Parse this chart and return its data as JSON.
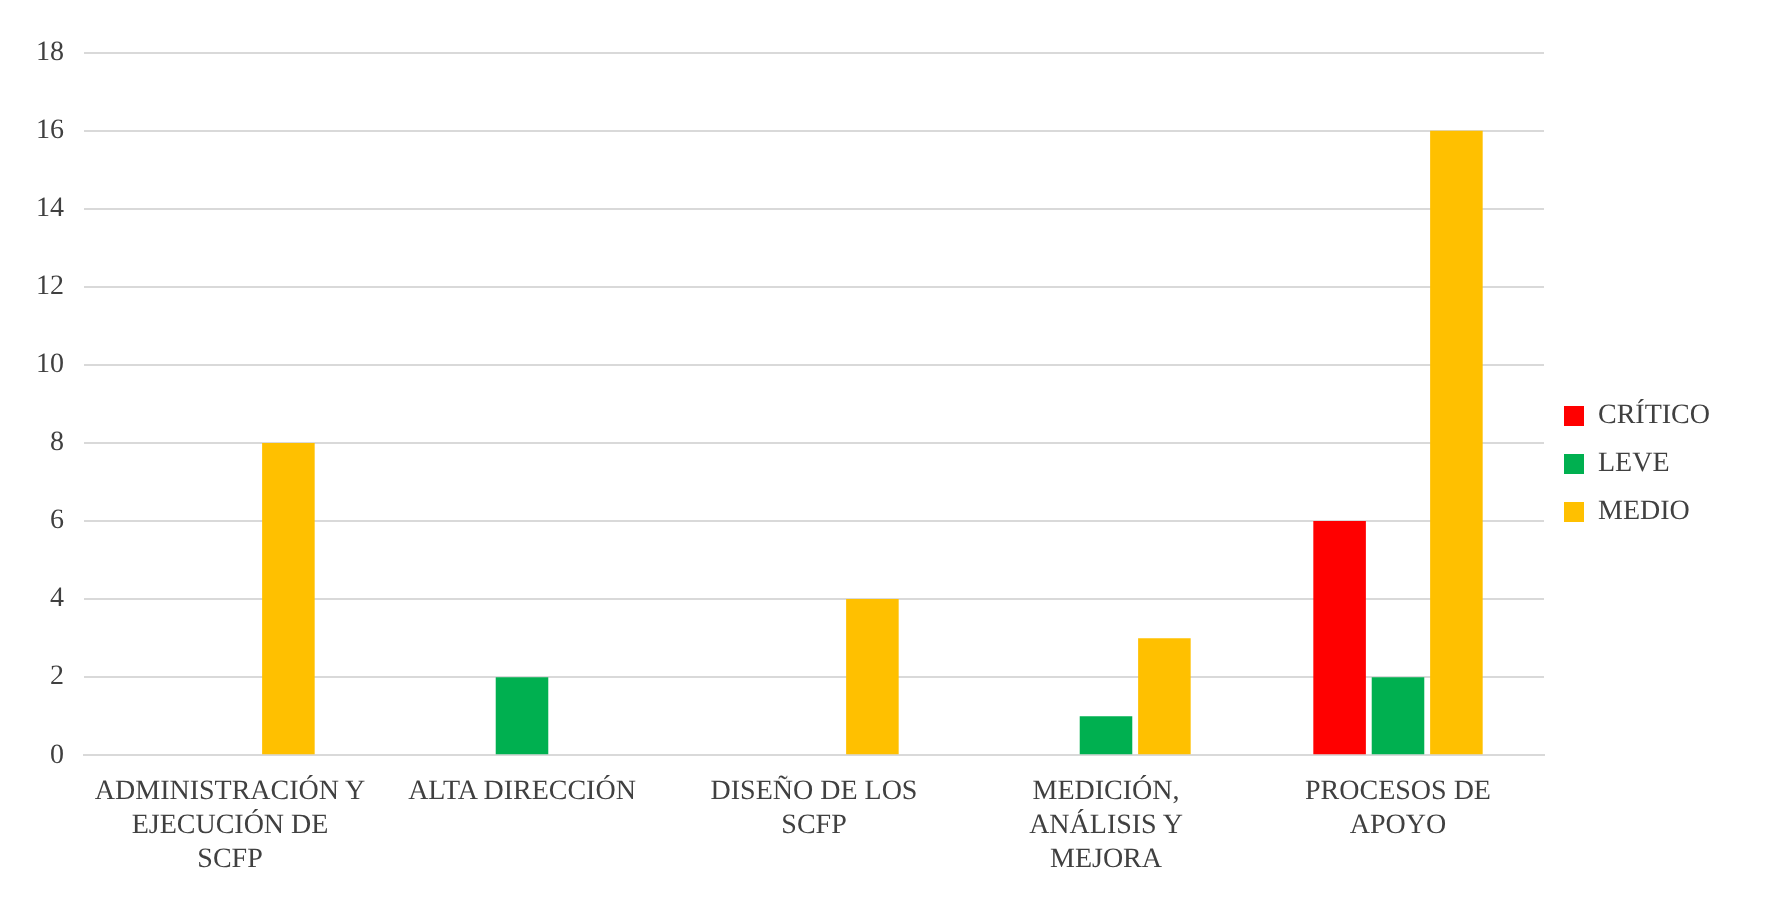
{
  "chart_data": {
    "type": "bar",
    "categories": [
      "ADMINISTRACIÓN Y EJECUCIÓN DE SCFP",
      "ALTA DIRECCIÓN",
      "DISEÑO DE LOS SCFP",
      "MEDICIÓN, ANÁLISIS Y MEJORA",
      "PROCESOS DE APOYO"
    ],
    "series": [
      {
        "name": "CRÍTICO",
        "color": "#ff0000",
        "values": [
          null,
          null,
          null,
          null,
          6
        ]
      },
      {
        "name": "LEVE",
        "color": "#00b050",
        "values": [
          null,
          2,
          null,
          1,
          2
        ]
      },
      {
        "name": "MEDIO",
        "color": "#ffc000",
        "values": [
          8,
          null,
          4,
          3,
          16
        ]
      }
    ],
    "ylim": [
      0,
      18
    ],
    "yticks": [
      0,
      2,
      4,
      6,
      8,
      10,
      12,
      14,
      16,
      18
    ],
    "grid": "y",
    "legend": "right"
  }
}
